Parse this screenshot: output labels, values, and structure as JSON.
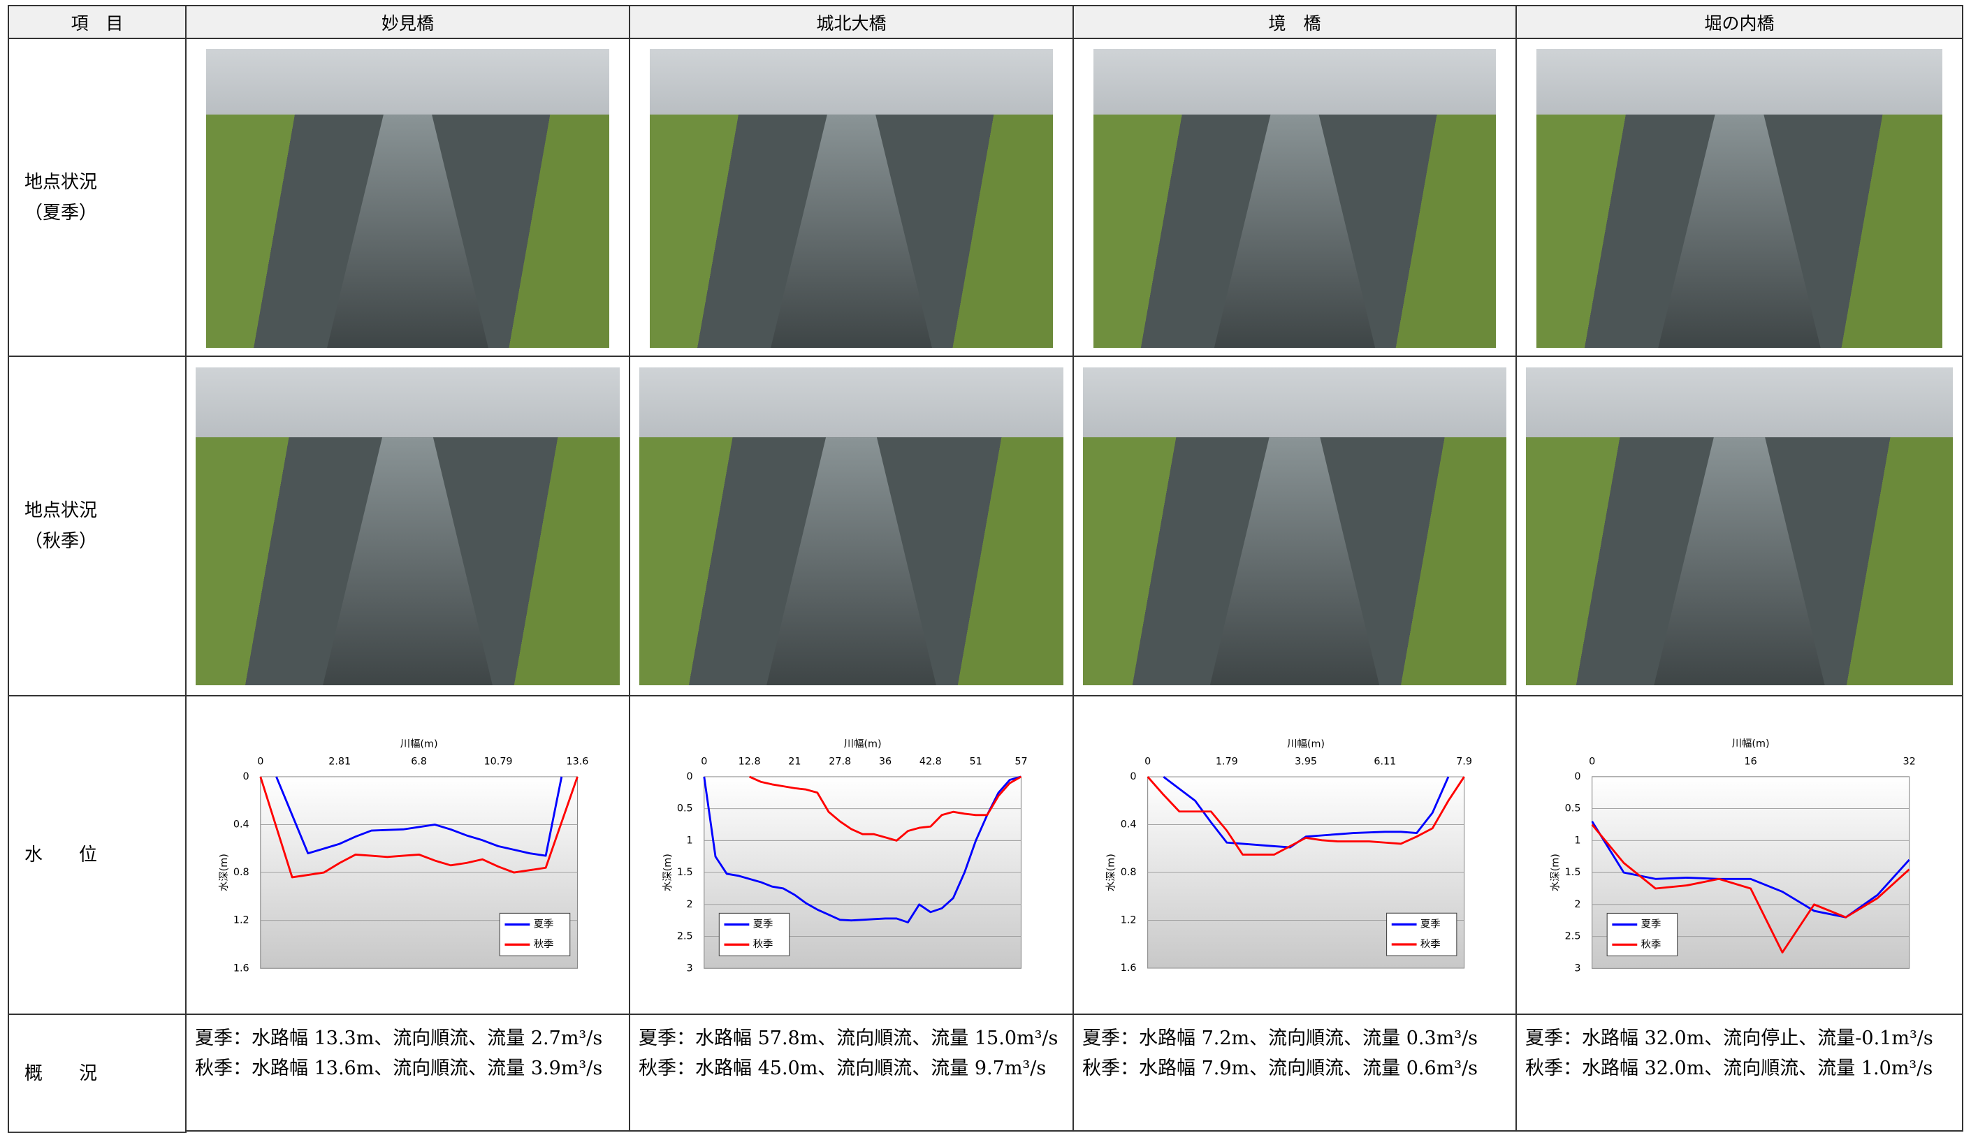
{
  "table": {
    "header": [
      "項　目",
      "妙見橋",
      "城北大橋",
      "境　橋",
      "堀の内橋"
    ],
    "summer_label": [
      "地点状況",
      "（夏季）"
    ],
    "autumn_label": [
      "地点状況",
      "（秋季）"
    ],
    "level_label": "水　　位",
    "summary_label": "概　　況",
    "summaries": [
      [
        "夏季：水路幅 13.3m、流向順流、流量 2.7m³/s",
        "秋季：水路幅 13.6m、流向順流、流量 3.9m³/s"
      ],
      [
        "夏季：水路幅 57.8m、流向順流、流量 15.0m³/s",
        "秋季：水路幅 45.0m、流向順流、流量 9.7m³/s"
      ],
      [
        "夏季：水路幅 7.2m、流向順流、流量 0.3m³/s",
        "秋季：水路幅 7.9m、流向順流、流量 0.6m³/s"
      ],
      [
        "夏季：水路幅 32.0m、流向停止、流量-0.1m³/s",
        "秋季：水路幅 32.0m、流向順流、流量 1.0m³/s"
      ]
    ]
  },
  "chart_data": [
    {
      "type": "line",
      "x_label": "川幅(m)",
      "y_label": "水深(m)",
      "y_inverted": true,
      "grid": true,
      "legend": "lower right",
      "categories": [
        "0",
        null,
        null,
        null,
        null,
        "2.81",
        null,
        null,
        null,
        null,
        "6.8",
        null,
        null,
        null,
        null,
        "10.79",
        null,
        null,
        null,
        null,
        "13.6"
      ],
      "ylim": [
        0,
        1.6
      ],
      "yticks": [
        0,
        0.4,
        0.8,
        1.2,
        1.6
      ],
      "series": [
        {
          "name": "夏季",
          "color": "#0000ff",
          "values": [
            null,
            0,
            0.32,
            0.64,
            0.6,
            0.56,
            0.5,
            0.45,
            0.445,
            0.44,
            0.42,
            0.4,
            0.44,
            0.49,
            0.53,
            0.58,
            0.61,
            0.64,
            0.66,
            0,
            null
          ]
        },
        {
          "name": "秋季",
          "color": "#ff0000",
          "values": [
            0,
            0.42,
            0.84,
            0.82,
            0.8,
            0.72,
            0.65,
            0.66,
            0.67,
            0.66,
            0.65,
            0.7,
            0.74,
            0.72,
            0.69,
            0.75,
            0.8,
            0.78,
            0.76,
            0.38,
            0
          ]
        }
      ]
    },
    {
      "type": "line",
      "x_label": "川幅(m)",
      "y_label": "水深(m)",
      "y_inverted": true,
      "grid": true,
      "legend": "lower left",
      "categories": [
        "0",
        null,
        null,
        null,
        "12.8",
        null,
        null,
        null,
        "21",
        null,
        null,
        null,
        "27.8",
        null,
        null,
        null,
        "36",
        null,
        null,
        null,
        "42.8",
        null,
        null,
        null,
        "51",
        null,
        null,
        null,
        "57"
      ],
      "ylim": [
        0,
        3
      ],
      "yticks": [
        0,
        0.5,
        1,
        1.5,
        2,
        2.5,
        3
      ],
      "series": [
        {
          "name": "夏季",
          "color": "#0000ff",
          "values": [
            0,
            1.25,
            1.52,
            1.55,
            1.6,
            1.65,
            1.72,
            1.75,
            1.85,
            1.98,
            2.08,
            2.16,
            2.24,
            2.25,
            2.24,
            2.23,
            2.22,
            2.22,
            2.28,
            2,
            2.12,
            2.06,
            1.9,
            1.5,
            1,
            0.6,
            0.25,
            0.05,
            0
          ]
        },
        {
          "name": "秋季",
          "color": "#ff0000",
          "values": [
            null,
            null,
            null,
            null,
            0,
            0.08,
            0.12,
            0.15,
            0.18,
            0.2,
            0.25,
            0.55,
            0.7,
            0.82,
            0.9,
            0.9,
            0.95,
            1,
            0.85,
            0.8,
            0.78,
            0.6,
            0.55,
            0.58,
            0.6,
            0.6,
            0.3,
            0.1,
            0
          ]
        }
      ]
    },
    {
      "type": "line",
      "x_label": "川幅(m)",
      "y_label": "水深(m)",
      "y_inverted": true,
      "grid": true,
      "legend": "lower right",
      "categories": [
        "0",
        null,
        null,
        null,
        null,
        "1.79",
        null,
        null,
        null,
        null,
        "3.95",
        null,
        null,
        null,
        null,
        "6.11",
        null,
        null,
        null,
        null,
        "7.9"
      ],
      "ylim": [
        0,
        1.6
      ],
      "yticks": [
        0,
        0.4,
        0.8,
        1.2,
        1.6
      ],
      "series": [
        {
          "name": "夏季",
          "color": "#0000ff",
          "values": [
            null,
            0,
            0.1,
            0.2,
            0.38,
            0.55,
            0.56,
            0.57,
            0.58,
            0.59,
            0.5,
            0.49,
            0.48,
            0.47,
            0.465,
            0.46,
            0.46,
            0.47,
            0.3,
            0,
            null
          ]
        },
        {
          "name": "秋季",
          "color": "#ff0000",
          "values": [
            0,
            0.15,
            0.29,
            0.29,
            0.29,
            0.45,
            0.65,
            0.65,
            0.65,
            0.58,
            0.51,
            0.53,
            0.54,
            0.54,
            0.54,
            0.55,
            0.56,
            0.5,
            0.43,
            0.2,
            0
          ]
        }
      ]
    },
    {
      "type": "line",
      "x_label": "川幅(m)",
      "y_label": "水深(m)",
      "y_inverted": true,
      "grid": true,
      "legend": "lower left",
      "categories": [
        "0",
        null,
        null,
        null,
        null,
        "16",
        null,
        null,
        null,
        null,
        "32"
      ],
      "ylim": [
        0,
        3
      ],
      "yticks": [
        0,
        0.5,
        1,
        1.5,
        2,
        2.5,
        3
      ],
      "series": [
        {
          "name": "夏季",
          "color": "#0000ff",
          "values": [
            0.7,
            1.5,
            1.6,
            1.58,
            1.6,
            1.6,
            1.8,
            2.1,
            2.2,
            1.85,
            1.3
          ]
        },
        {
          "name": "秋季",
          "color": "#ff0000",
          "values": [
            0.75,
            1.35,
            1.75,
            1.7,
            1.6,
            1.75,
            2.75,
            2,
            2.2,
            1.9,
            1.45
          ]
        }
      ]
    }
  ]
}
